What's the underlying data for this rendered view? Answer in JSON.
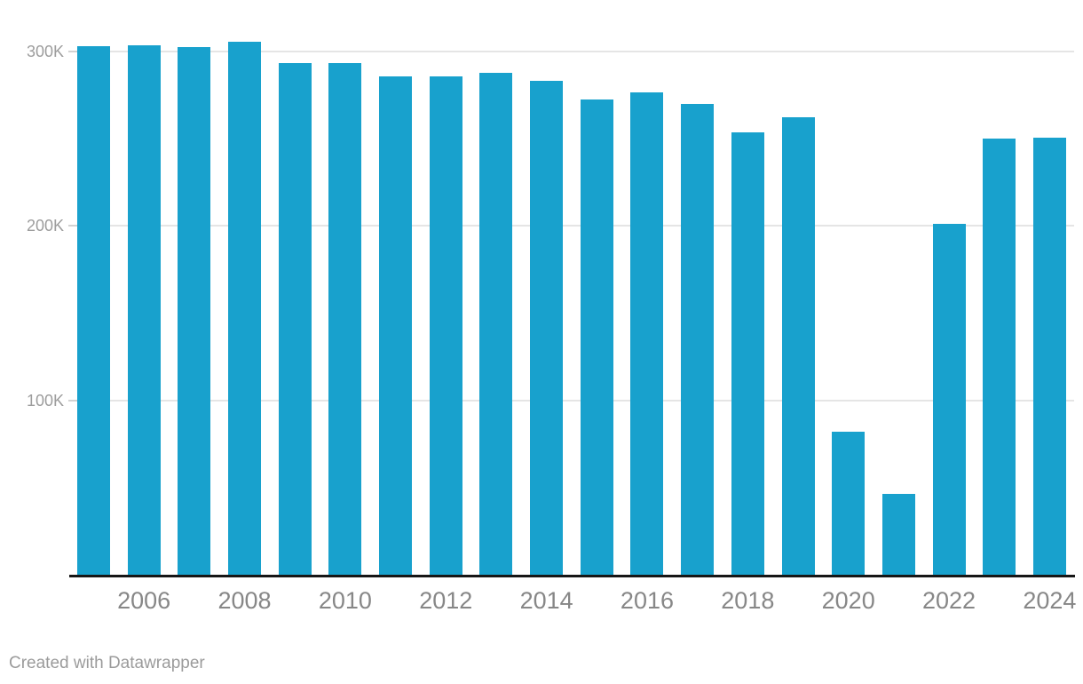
{
  "footer": {
    "credit": "Created with Datawrapper"
  },
  "colors": {
    "bar": "#18a1cd",
    "gridline": "#e5e5e5",
    "tick_stub": "#d2d2d2",
    "axis_line": "#161616",
    "y_label": "#9d9d9d",
    "x_label": "#878787",
    "footer": "#9b9b9b",
    "background": "#ffffff"
  },
  "chart_data": {
    "type": "bar",
    "title": "",
    "xlabel": "",
    "ylabel": "",
    "categories": [
      2005,
      2006,
      2007,
      2008,
      2009,
      2010,
      2011,
      2012,
      2013,
      2014,
      2015,
      2016,
      2017,
      2018,
      2019,
      2020,
      2021,
      2022,
      2023,
      2024
    ],
    "values": [
      303000,
      303500,
      302500,
      305500,
      293000,
      293000,
      285500,
      285500,
      287500,
      283000,
      272500,
      276500,
      269500,
      253500,
      262000,
      82000,
      46500,
      201000,
      250000,
      250500
    ],
    "ylim": [
      0,
      330000
    ],
    "grid": true,
    "legend": "none",
    "y_ticks": [
      {
        "value": 100000,
        "label": "100K"
      },
      {
        "value": 200000,
        "label": "200K"
      },
      {
        "value": 300000,
        "label": "300K"
      }
    ],
    "x_tick_labels": [
      "2006",
      "2008",
      "2010",
      "2012",
      "2014",
      "2016",
      "2018",
      "2020",
      "2022",
      "2024"
    ]
  }
}
